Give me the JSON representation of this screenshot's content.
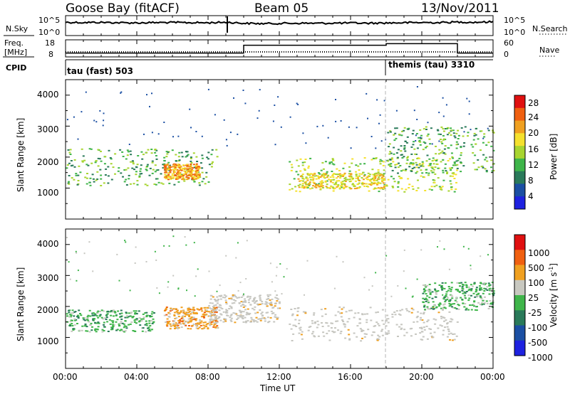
{
  "header": {
    "station": "Goose Bay (fitACF)",
    "beam": "Beam 05",
    "date": "13/Nov/2011"
  },
  "noise_panel": {
    "left_label": "N.Sky",
    "left_ticks": [
      "10^5",
      "10^0"
    ],
    "right_label": "N.Search",
    "right_ticks": [
      "10^5",
      "10^0"
    ]
  },
  "freq_panel": {
    "left_label_1": "Freq.",
    "left_label_2": "[MHz]",
    "left_ticks": [
      "18",
      "8"
    ],
    "right_label": "Nave",
    "right_ticks": [
      "60",
      "0"
    ]
  },
  "cpid": {
    "label": "CPID",
    "segments": [
      "tau (fast) 503",
      "themis (tau) 3310"
    ]
  },
  "colors": {
    "power_scale": [
      "#1e22e0",
      "#1b4fa3",
      "#2a7a5a",
      "#3fb54a",
      "#a8d530",
      "#f5e12e",
      "#f0a020",
      "#f06010",
      "#e01010"
    ],
    "velocity_scale": [
      "#1e22e0",
      "#1b4fa3",
      "#2a7a5a",
      "#3fb54a",
      "#c8c8c0",
      "#f0a020",
      "#f06010",
      "#e01010"
    ],
    "ground_scatter": "#c6c6c0"
  },
  "chart_data": [
    {
      "type": "line",
      "title": "N.Sky / N.Search",
      "y_scale": "log",
      "ylim": [
        1,
        100000
      ],
      "x": [
        "00:00",
        "01:00",
        "02:00",
        "03:00",
        "04:00",
        "05:00",
        "06:00",
        "07:00",
        "08:00",
        "09:00",
        "10:00",
        "11:00",
        "12:00",
        "13:00",
        "14:00",
        "15:00",
        "16:00",
        "17:00",
        "18:00",
        "19:00",
        "20:00",
        "21:00",
        "22:00",
        "23:00",
        "24:00"
      ],
      "series": [
        {
          "name": "N.Sky",
          "values": [
            3000,
            2500,
            2800,
            2200,
            2000,
            2400,
            2600,
            2300,
            2100,
            3000,
            1500,
            1200,
            1400,
            1600,
            1500,
            1700,
            1800,
            1600,
            1900,
            2200,
            2500,
            2400,
            3500,
            3000,
            4000
          ]
        }
      ]
    },
    {
      "type": "line",
      "title": "Freq. [MHz] / Nave",
      "x": [
        "00:00",
        "10:00",
        "10:00",
        "18:00",
        "18:00",
        "22:00",
        "22:00",
        "24:00"
      ],
      "series": [
        {
          "name": "Freq.",
          "values": [
            10,
            10,
            15,
            15,
            16,
            16,
            10,
            10
          ]
        },
        {
          "name": "Nave",
          "values": [
            15,
            15,
            15,
            15,
            15,
            15,
            15,
            15
          ]
        }
      ],
      "ylim_left": [
        8,
        18
      ],
      "ylim_right": [
        0,
        60
      ]
    },
    {
      "type": "heatmap",
      "title": "Power",
      "ylabel": "Slant Range [km]",
      "colorbar_label": "Power [dB]",
      "colorbar_ticks": [
        4,
        8,
        12,
        16,
        20,
        24,
        28
      ],
      "x_range_hours": [
        0,
        24
      ],
      "ylim": [
        0,
        4500
      ],
      "y_ticks": [
        1000,
        2000,
        3000,
        4000
      ],
      "regions": [
        {
          "t0": 0.0,
          "t1": 8.5,
          "r0": 1100,
          "r1": 2300,
          "level": 3
        },
        {
          "t0": 5.5,
          "t1": 7.5,
          "r0": 1300,
          "r1": 1800,
          "level": 6
        },
        {
          "t0": 12.5,
          "t1": 22.0,
          "r0": 900,
          "r1": 2000,
          "level": 4
        },
        {
          "t0": 13.0,
          "t1": 18.0,
          "r0": 1000,
          "r1": 1500,
          "level": 5
        },
        {
          "t0": 18.0,
          "t1": 24.0,
          "r0": 1500,
          "r1": 3000,
          "level": 3
        }
      ]
    },
    {
      "type": "heatmap",
      "title": "Velocity",
      "ylabel": "Slant Range [km]",
      "xlabel": "Time UT",
      "colorbar_label": "Velocity [m s^-1]",
      "colorbar_ticks": [
        "1000",
        "500",
        "100",
        "25",
        "-25",
        "-100",
        "-500",
        "-1000"
      ],
      "x_range_hours": [
        0,
        24
      ],
      "x_ticks": [
        "00:00",
        "04:00",
        "08:00",
        "12:00",
        "16:00",
        "20:00",
        "00:00"
      ],
      "ylim": [
        0,
        4500
      ],
      "y_ticks": [
        1000,
        2000,
        3000,
        4000
      ],
      "regions": [
        {
          "t0": 0.0,
          "t1": 5.0,
          "r0": 1200,
          "r1": 1900,
          "level": "green"
        },
        {
          "t0": 5.5,
          "t1": 8.5,
          "r0": 1300,
          "r1": 2000,
          "level": "orange"
        },
        {
          "t0": 8.0,
          "t1": 12.0,
          "r0": 1500,
          "r1": 2400,
          "level": "gray"
        },
        {
          "t0": 12.5,
          "t1": 22.0,
          "r0": 900,
          "r1": 2000,
          "level": "gray"
        },
        {
          "t0": 20.0,
          "t1": 24.0,
          "r0": 1900,
          "r1": 2800,
          "level": "green"
        }
      ]
    }
  ],
  "axis": {
    "xlabel": "Time UT",
    "x_ticks": [
      "00:00",
      "04:00",
      "08:00",
      "12:00",
      "16:00",
      "20:00",
      "00:00"
    ],
    "ylabel": "Slant Range [km]",
    "y_ticks": [
      "1000",
      "2000",
      "3000",
      "4000"
    ],
    "power_cb_label": "Power [dB]",
    "power_cb_ticks": [
      "28",
      "24",
      "20",
      "16",
      "12",
      "8",
      "4"
    ],
    "vel_cb_label": "Velocity [m s",
    "vel_cb_sup": "-1",
    "vel_cb_close": "]",
    "vel_cb_ticks": [
      "1000",
      "500",
      "100",
      "25",
      "-25",
      "-100",
      "-500",
      "-1000"
    ]
  }
}
